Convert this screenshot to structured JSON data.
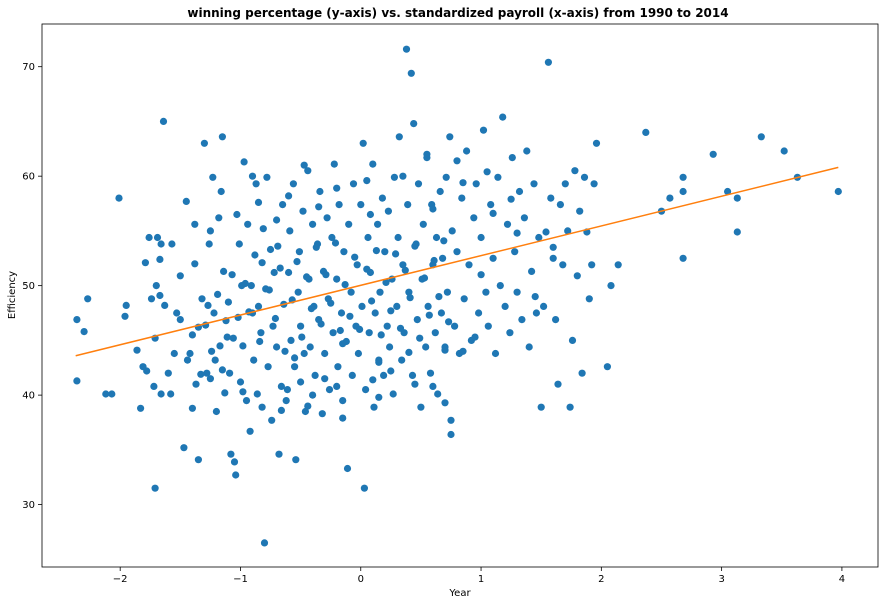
{
  "chart_data": {
    "type": "scatter",
    "title": "winning percentage (y-axis) vs. standardized payroll (x-axis) from 1990 to 2014",
    "xlabel": "Year",
    "ylabel": "Efficiency",
    "xlim": [
      -2.65,
      4.3
    ],
    "ylim": [
      24.3,
      73.9
    ],
    "xticks": [
      -2,
      -1,
      0,
      1,
      2,
      3,
      4
    ],
    "yticks": [
      30,
      40,
      50,
      60,
      70
    ],
    "xtick_labels": [
      "−2",
      "−1",
      "0",
      "1",
      "2",
      "3",
      "4"
    ],
    "ytick_labels": [
      "30",
      "40",
      "50",
      "60",
      "70"
    ],
    "grid": false,
    "point_color": "#1f77b4",
    "trend_color": "#ff7f0e",
    "trend": {
      "x": [
        -2.37,
        3.97
      ],
      "y": [
        43.6,
        60.8
      ]
    },
    "points": [
      [
        -2.36,
        46.9
      ],
      [
        -2.36,
        41.3
      ],
      [
        -2.3,
        45.8
      ],
      [
        -2.27,
        48.8
      ],
      [
        -2.12,
        40.1
      ],
      [
        -2.07,
        40.1
      ],
      [
        -2.01,
        58.0
      ],
      [
        -1.96,
        47.2
      ],
      [
        -1.95,
        48.2
      ],
      [
        -1.86,
        44.1
      ],
      [
        -1.83,
        38.8
      ],
      [
        -1.81,
        42.6
      ],
      [
        -1.79,
        52.1
      ],
      [
        -1.78,
        42.2
      ],
      [
        -1.76,
        54.4
      ],
      [
        -1.74,
        48.8
      ],
      [
        -1.72,
        40.8
      ],
      [
        -1.71,
        31.5
      ],
      [
        -1.71,
        45.2
      ],
      [
        -1.7,
        50.0
      ],
      [
        -1.69,
        54.4
      ],
      [
        -1.67,
        49.1
      ],
      [
        -1.67,
        52.4
      ],
      [
        -1.66,
        53.8
      ],
      [
        -1.66,
        40.1
      ],
      [
        -1.64,
        65.0
      ],
      [
        -1.63,
        48.2
      ],
      [
        -1.6,
        42.0
      ],
      [
        -1.57,
        53.8
      ],
      [
        -1.58,
        40.1
      ],
      [
        -1.55,
        43.8
      ],
      [
        -1.53,
        47.5
      ],
      [
        -1.5,
        46.9
      ],
      [
        -1.47,
        35.2
      ],
      [
        -1.45,
        57.7
      ],
      [
        -1.44,
        43.2
      ],
      [
        -1.42,
        43.8
      ],
      [
        -1.4,
        38.8
      ],
      [
        -1.4,
        45.5
      ],
      [
        -1.38,
        55.6
      ],
      [
        -1.37,
        41.0
      ],
      [
        -1.35,
        34.1
      ],
      [
        -1.35,
        46.2
      ],
      [
        -1.32,
        48.8
      ],
      [
        -1.3,
        63.0
      ],
      [
        -1.28,
        42.0
      ],
      [
        -1.27,
        48.2
      ],
      [
        -1.26,
        53.8
      ],
      [
        -1.25,
        41.5
      ],
      [
        -1.23,
        59.9
      ],
      [
        -1.22,
        47.5
      ],
      [
        -1.21,
        43.2
      ],
      [
        -1.2,
        38.5
      ],
      [
        -1.18,
        56.2
      ],
      [
        -1.17,
        44.5
      ],
      [
        -1.16,
        58.6
      ],
      [
        -1.15,
        63.6
      ],
      [
        -1.14,
        51.3
      ],
      [
        -1.13,
        40.2
      ],
      [
        -1.12,
        46.8
      ],
      [
        -1.1,
        48.5
      ],
      [
        -1.09,
        42.0
      ],
      [
        -1.08,
        34.6
      ],
      [
        -1.06,
        45.2
      ],
      [
        -1.05,
        33.9
      ],
      [
        -1.04,
        32.7
      ],
      [
        -1.03,
        56.5
      ],
      [
        -1.01,
        53.8
      ],
      [
        -1.0,
        41.2
      ],
      [
        -0.99,
        50.0
      ],
      [
        -0.98,
        44.5
      ],
      [
        -0.97,
        61.3
      ],
      [
        -0.95,
        39.5
      ],
      [
        -0.94,
        55.6
      ],
      [
        -0.92,
        36.7
      ],
      [
        -0.91,
        50.0
      ],
      [
        -0.9,
        47.5
      ],
      [
        -0.89,
        43.2
      ],
      [
        -0.87,
        59.3
      ],
      [
        -0.86,
        40.1
      ],
      [
        -0.85,
        48.1
      ],
      [
        -0.83,
        45.7
      ],
      [
        -0.82,
        52.1
      ],
      [
        -0.81,
        55.2
      ],
      [
        -0.8,
        26.5
      ],
      [
        -0.78,
        59.9
      ],
      [
        -0.77,
        42.6
      ],
      [
        -0.76,
        49.6
      ],
      [
        -0.74,
        37.7
      ],
      [
        -0.73,
        46.3
      ],
      [
        -0.72,
        51.2
      ],
      [
        -0.7,
        44.4
      ],
      [
        -0.69,
        53.6
      ],
      [
        -0.68,
        34.6
      ],
      [
        -0.66,
        40.8
      ],
      [
        -0.65,
        57.4
      ],
      [
        -0.64,
        48.3
      ],
      [
        -0.62,
        39.5
      ],
      [
        -0.6,
        51.2
      ],
      [
        -0.59,
        55.0
      ],
      [
        -0.58,
        45.0
      ],
      [
        -0.56,
        59.3
      ],
      [
        -0.55,
        42.6
      ],
      [
        -0.54,
        34.1
      ],
      [
        -0.52,
        49.4
      ],
      [
        -0.51,
        53.1
      ],
      [
        -0.5,
        46.3
      ],
      [
        -0.48,
        56.8
      ],
      [
        -0.47,
        43.8
      ],
      [
        -0.46,
        38.5
      ],
      [
        -0.44,
        60.5
      ],
      [
        -0.43,
        50.6
      ],
      [
        -0.42,
        44.4
      ],
      [
        -0.4,
        55.6
      ],
      [
        -0.39,
        48.1
      ],
      [
        -0.38,
        41.8
      ],
      [
        -0.36,
        53.8
      ],
      [
        -0.35,
        46.9
      ],
      [
        -0.34,
        58.6
      ],
      [
        -0.32,
        38.3
      ],
      [
        -0.31,
        51.3
      ],
      [
        -0.3,
        43.8
      ],
      [
        -0.28,
        56.2
      ],
      [
        -0.27,
        48.8
      ],
      [
        -0.26,
        40.5
      ],
      [
        -0.24,
        54.4
      ],
      [
        -0.23,
        45.7
      ],
      [
        -0.22,
        61.1
      ],
      [
        -0.2,
        50.6
      ],
      [
        -0.19,
        42.6
      ],
      [
        -0.18,
        57.4
      ],
      [
        -0.16,
        47.5
      ],
      [
        -0.15,
        39.5
      ],
      [
        -0.14,
        53.1
      ],
      [
        -0.12,
        44.9
      ],
      [
        -0.11,
        33.3
      ],
      [
        -0.1,
        55.6
      ],
      [
        -0.08,
        49.4
      ],
      [
        -0.07,
        41.8
      ],
      [
        -0.06,
        59.3
      ],
      [
        -0.04,
        46.3
      ],
      [
        -0.03,
        51.9
      ],
      [
        -0.02,
        43.8
      ],
      [
        0.0,
        57.4
      ],
      [
        0.01,
        48.1
      ],
      [
        0.02,
        63.0
      ],
      [
        0.03,
        31.5
      ],
      [
        0.04,
        40.5
      ],
      [
        0.06,
        54.4
      ],
      [
        0.07,
        45.7
      ],
      [
        0.08,
        51.2
      ],
      [
        0.1,
        61.1
      ],
      [
        0.11,
        38.9
      ],
      [
        0.12,
        47.5
      ],
      [
        0.14,
        55.6
      ],
      [
        0.15,
        43.2
      ],
      [
        0.16,
        49.4
      ],
      [
        0.18,
        58.0
      ],
      [
        0.19,
        41.8
      ],
      [
        0.2,
        53.1
      ],
      [
        0.22,
        46.3
      ],
      [
        0.23,
        56.8
      ],
      [
        0.24,
        44.4
      ],
      [
        0.26,
        50.6
      ],
      [
        0.27,
        40.1
      ],
      [
        0.28,
        59.9
      ],
      [
        0.3,
        48.1
      ],
      [
        0.31,
        54.4
      ],
      [
        0.32,
        63.6
      ],
      [
        0.34,
        43.2
      ],
      [
        0.35,
        51.9
      ],
      [
        0.36,
        45.7
      ],
      [
        0.38,
        71.6
      ],
      [
        0.39,
        57.4
      ],
      [
        0.4,
        49.4
      ],
      [
        0.42,
        69.4
      ],
      [
        0.43,
        41.8
      ],
      [
        0.44,
        64.8
      ],
      [
        0.46,
        53.8
      ],
      [
        0.47,
        46.9
      ],
      [
        0.48,
        59.3
      ],
      [
        0.5,
        38.9
      ],
      [
        0.51,
        50.6
      ],
      [
        0.52,
        55.6
      ],
      [
        0.54,
        44.4
      ],
      [
        0.55,
        61.7
      ],
      [
        0.56,
        48.1
      ],
      [
        0.58,
        42.0
      ],
      [
        0.59,
        57.4
      ],
      [
        0.6,
        51.9
      ],
      [
        0.62,
        45.7
      ],
      [
        0.63,
        54.4
      ],
      [
        0.64,
        40.1
      ],
      [
        0.66,
        58.6
      ],
      [
        0.67,
        47.5
      ],
      [
        0.68,
        52.5
      ],
      [
        0.7,
        44.4
      ],
      [
        0.71,
        59.9
      ],
      [
        0.72,
        49.4
      ],
      [
        0.74,
        63.6
      ],
      [
        0.75,
        37.7
      ],
      [
        0.75,
        36.4
      ],
      [
        0.76,
        55.0
      ],
      [
        0.78,
        46.3
      ],
      [
        0.8,
        53.1
      ],
      [
        0.82,
        43.8
      ],
      [
        0.84,
        58.0
      ],
      [
        0.86,
        48.8
      ],
      [
        0.88,
        62.3
      ],
      [
        0.9,
        51.9
      ],
      [
        0.92,
        45.0
      ],
      [
        0.94,
        56.2
      ],
      [
        0.96,
        59.3
      ],
      [
        0.98,
        47.5
      ],
      [
        1.0,
        54.4
      ],
      [
        1.02,
        64.2
      ],
      [
        1.04,
        49.4
      ],
      [
        1.06,
        46.3
      ],
      [
        1.08,
        57.4
      ],
      [
        1.1,
        52.5
      ],
      [
        1.12,
        43.8
      ],
      [
        1.14,
        59.9
      ],
      [
        1.16,
        50.0
      ],
      [
        1.18,
        65.4
      ],
      [
        1.2,
        48.1
      ],
      [
        1.22,
        55.6
      ],
      [
        1.24,
        45.7
      ],
      [
        1.26,
        61.7
      ],
      [
        1.28,
        53.1
      ],
      [
        1.3,
        49.4
      ],
      [
        1.32,
        58.6
      ],
      [
        1.34,
        46.9
      ],
      [
        1.36,
        56.2
      ],
      [
        1.38,
        62.3
      ],
      [
        1.4,
        44.4
      ],
      [
        1.42,
        51.3
      ],
      [
        1.44,
        59.3
      ],
      [
        1.46,
        47.5
      ],
      [
        1.48,
        54.4
      ],
      [
        1.5,
        38.9
      ],
      [
        1.52,
        48.1
      ],
      [
        1.54,
        54.9
      ],
      [
        1.56,
        70.4
      ],
      [
        1.58,
        58.0
      ],
      [
        1.6,
        52.5
      ],
      [
        1.62,
        46.9
      ],
      [
        1.64,
        41.0
      ],
      [
        1.66,
        57.4
      ],
      [
        1.68,
        51.9
      ],
      [
        1.7,
        59.3
      ],
      [
        1.72,
        55.0
      ],
      [
        1.74,
        38.9
      ],
      [
        1.76,
        45.0
      ],
      [
        1.78,
        60.5
      ],
      [
        1.8,
        50.9
      ],
      [
        1.82,
        56.8
      ],
      [
        1.84,
        42.0
      ],
      [
        1.86,
        59.9
      ],
      [
        1.88,
        54.9
      ],
      [
        1.9,
        48.8
      ],
      [
        1.92,
        51.9
      ],
      [
        1.94,
        59.3
      ],
      [
        1.96,
        63.0
      ],
      [
        2.05,
        42.6
      ],
      [
        2.08,
        50.0
      ],
      [
        2.14,
        51.9
      ],
      [
        2.37,
        64.0
      ],
      [
        2.5,
        56.8
      ],
      [
        2.57,
        58.0
      ],
      [
        2.68,
        52.5
      ],
      [
        2.68,
        58.6
      ],
      [
        2.68,
        59.9
      ],
      [
        2.93,
        62.0
      ],
      [
        3.05,
        58.6
      ],
      [
        3.13,
        58.0
      ],
      [
        3.13,
        54.9
      ],
      [
        3.33,
        63.6
      ],
      [
        3.52,
        62.3
      ],
      [
        3.63,
        59.9
      ],
      [
        3.97,
        58.6
      ],
      [
        -0.96,
        50.2
      ],
      [
        -0.93,
        47.6
      ],
      [
        -0.88,
        52.8
      ],
      [
        -0.84,
        44.9
      ],
      [
        -0.79,
        49.7
      ],
      [
        -0.75,
        53.3
      ],
      [
        -0.71,
        47.0
      ],
      [
        -0.67,
        51.6
      ],
      [
        -0.63,
        44.0
      ],
      [
        -0.57,
        48.7
      ],
      [
        -0.53,
        52.2
      ],
      [
        -0.49,
        45.3
      ],
      [
        -0.45,
        50.8
      ],
      [
        -0.41,
        47.9
      ],
      [
        -0.37,
        53.5
      ],
      [
        -0.33,
        46.5
      ],
      [
        -0.29,
        51.0
      ],
      [
        -0.25,
        48.4
      ],
      [
        -0.21,
        53.9
      ],
      [
        -0.17,
        45.9
      ],
      [
        -0.13,
        50.1
      ],
      [
        -0.09,
        47.2
      ],
      [
        -0.05,
        52.6
      ],
      [
        -0.01,
        46.0
      ],
      [
        0.05,
        51.5
      ],
      [
        0.09,
        48.6
      ],
      [
        0.13,
        53.2
      ],
      [
        0.17,
        45.5
      ],
      [
        0.21,
        50.3
      ],
      [
        0.25,
        47.7
      ],
      [
        0.29,
        52.9
      ],
      [
        0.33,
        46.1
      ],
      [
        0.37,
        51.4
      ],
      [
        0.41,
        48.9
      ],
      [
        0.45,
        53.6
      ],
      [
        0.49,
        45.2
      ],
      [
        0.53,
        50.7
      ],
      [
        0.57,
        47.3
      ],
      [
        0.61,
        52.3
      ],
      [
        0.65,
        49.0
      ],
      [
        0.69,
        54.1
      ],
      [
        0.73,
        46.7
      ],
      [
        -1.02,
        47.1
      ],
      [
        -1.07,
        51.0
      ],
      [
        -1.11,
        45.3
      ],
      [
        -1.19,
        49.2
      ],
      [
        -1.24,
        44.0
      ],
      [
        -1.29,
        46.4
      ],
      [
        -1.33,
        41.9
      ],
      [
        -0.61,
        40.5
      ],
      [
        -0.5,
        41.2
      ],
      [
        -0.4,
        40.0
      ],
      [
        -0.3,
        41.5
      ],
      [
        -0.2,
        40.8
      ],
      [
        0.1,
        41.4
      ],
      [
        0.25,
        42.2
      ],
      [
        0.45,
        41.0
      ],
      [
        0.6,
        40.8
      ],
      [
        0.85,
        44.0
      ],
      [
        -0.85,
        57.6
      ],
      [
        -0.6,
        58.2
      ],
      [
        -0.2,
        58.9
      ],
      [
        0.05,
        59.6
      ],
      [
        0.35,
        60.0
      ],
      [
        0.6,
        57.0
      ],
      [
        0.85,
        59.4
      ],
      [
        1.05,
        60.4
      ],
      [
        1.25,
        57.9
      ],
      [
        -0.55,
        43.4
      ],
      [
        -0.15,
        44.7
      ],
      [
        0.15,
        43.0
      ],
      [
        0.4,
        43.9
      ],
      [
        0.7,
        44.1
      ],
      [
        1.0,
        51.0
      ],
      [
        1.1,
        56.6
      ],
      [
        1.3,
        54.8
      ],
      [
        1.45,
        49.0
      ],
      [
        1.6,
        53.5
      ],
      [
        0.95,
        45.3
      ],
      [
        -0.7,
        56.0
      ],
      [
        -0.35,
        57.2
      ],
      [
        0.08,
        56.5
      ],
      [
        -1.15,
        42.3
      ],
      [
        -0.98,
        40.3
      ],
      [
        -0.82,
        38.9
      ],
      [
        -0.66,
        38.6
      ],
      [
        -0.44,
        39.0
      ],
      [
        -0.15,
        37.9
      ],
      [
        0.15,
        39.8
      ],
      [
        0.7,
        39.3
      ],
      [
        -1.5,
        50.9
      ],
      [
        -1.38,
        52.0
      ],
      [
        -1.25,
        55.0
      ],
      [
        -0.9,
        60.0
      ],
      [
        -0.47,
        61.0
      ],
      [
        0.55,
        62.0
      ],
      [
        0.8,
        61.4
      ]
    ]
  }
}
